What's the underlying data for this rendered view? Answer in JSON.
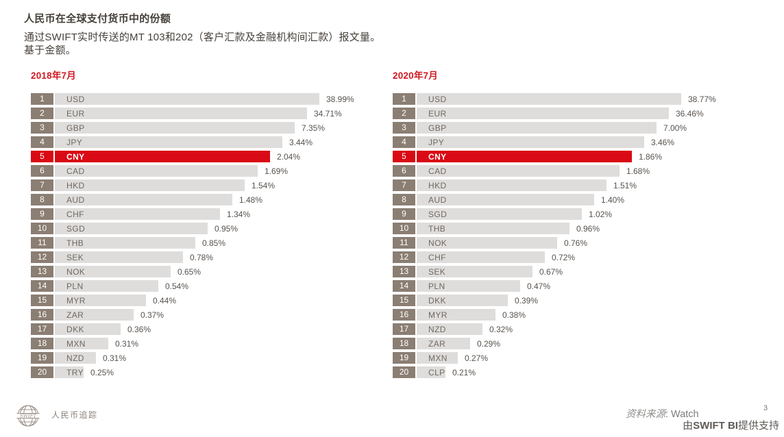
{
  "page": {
    "title": "人民币在全球支付货币中的份额",
    "subtitle_line1": "通过SWIFT实时传送的MT 103和202（客户汇款及金融机构间汇款）报文量。",
    "subtitle_line2": "基于金额。"
  },
  "chart_data": [
    {
      "type": "bar",
      "title": "2018年7月",
      "categories": [
        "USD",
        "EUR",
        "GBP",
        "JPY",
        "CNY",
        "CAD",
        "HKD",
        "AUD",
        "CHF",
        "SGD",
        "THB",
        "SEK",
        "NOK",
        "PLN",
        "MYR",
        "ZAR",
        "DKK",
        "MXN",
        "NZD",
        "TRY"
      ],
      "values": [
        38.99,
        34.71,
        7.35,
        3.44,
        2.04,
        1.69,
        1.54,
        1.48,
        1.34,
        0.95,
        0.85,
        0.78,
        0.65,
        0.54,
        0.44,
        0.37,
        0.36,
        0.31,
        0.31,
        0.25
      ],
      "value_labels": [
        "38.99%",
        "34.71%",
        "7.35%",
        "3.44%",
        "2.04%",
        "1.69%",
        "1.54%",
        "1.48%",
        "1.34%",
        "0.95%",
        "0.85%",
        "0.78%",
        "0.65%",
        "0.54%",
        "0.44%",
        "0.37%",
        "0.36%",
        "0.31%",
        "0.31%",
        "0.25%"
      ],
      "ranks": [
        1,
        2,
        3,
        4,
        5,
        6,
        7,
        8,
        9,
        10,
        11,
        12,
        13,
        14,
        15,
        16,
        17,
        18,
        19,
        20
      ],
      "highlight_category": "CNY",
      "xlabel": "",
      "ylabel": "",
      "legend": false,
      "layout_hint": "horizontal ranked bars; bar length decreases linearly by rank, not proportional to value"
    },
    {
      "type": "bar",
      "title": "2020年7月",
      "categories": [
        "USD",
        "EUR",
        "GBP",
        "JPY",
        "CNY",
        "CAD",
        "HKD",
        "AUD",
        "SGD",
        "THB",
        "NOK",
        "CHF",
        "SEK",
        "PLN",
        "DKK",
        "MYR",
        "NZD",
        "ZAR",
        "MXN",
        "CLP"
      ],
      "values": [
        38.77,
        36.46,
        7.0,
        3.46,
        1.86,
        1.68,
        1.51,
        1.4,
        1.02,
        0.96,
        0.76,
        0.72,
        0.67,
        0.47,
        0.39,
        0.38,
        0.32,
        0.29,
        0.27,
        0.21
      ],
      "value_labels": [
        "38.77%",
        "36.46%",
        "7.00%",
        "3.46%",
        "1.86%",
        "1.68%",
        "1.51%",
        "1.40%",
        "1.02%",
        "0.96%",
        "0.76%",
        "0.72%",
        "0.67%",
        "0.47%",
        "0.39%",
        "0.38%",
        "0.32%",
        "0.29%",
        "0.27%",
        "0.21%"
      ],
      "ranks": [
        1,
        2,
        3,
        4,
        5,
        6,
        7,
        8,
        9,
        10,
        11,
        12,
        13,
        14,
        15,
        16,
        17,
        18,
        19,
        20
      ],
      "highlight_category": "CNY",
      "xlabel": "",
      "ylabel": "",
      "legend": false,
      "layout_hint": "horizontal ranked bars; bar length decreases linearly by rank, not proportional to value"
    }
  ],
  "footer": {
    "logo_text": "SWIFT",
    "brand_label": "人民币追踪",
    "source_label": "资料来源",
    "source_value": ": Watch",
    "page_number": "3",
    "powered_by_prefix": "由",
    "powered_by_bold": "SWIFT BI",
    "powered_by_suffix": "提供支持"
  },
  "colors": {
    "accent_red": "#D90915",
    "header_red": "#CE1A23",
    "rank_badge_taupe": "#8B7E73",
    "bar_gray": "#DFDDDB",
    "title_text": "#47413B",
    "value_text": "#57524D",
    "footer_muted": "#8A8178"
  }
}
